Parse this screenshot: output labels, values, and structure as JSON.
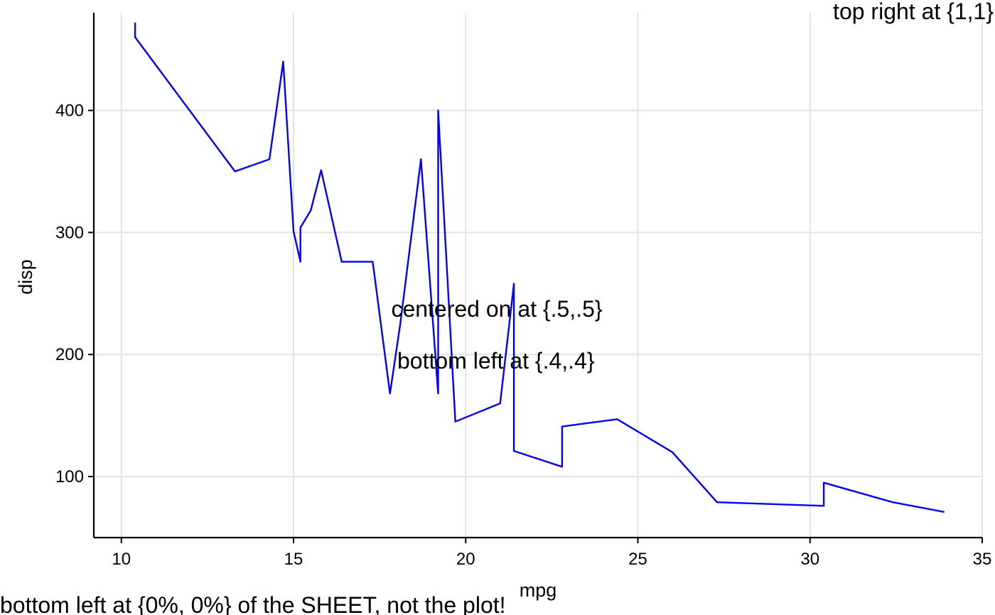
{
  "chart_data": {
    "type": "line",
    "xlabel": "mpg",
    "ylabel": "disp",
    "xlim": [
      9.2,
      35.0
    ],
    "ylim": [
      50,
      480
    ],
    "xticks": [
      10,
      15,
      20,
      25,
      30,
      35
    ],
    "yticks": [
      100,
      200,
      300,
      400
    ],
    "grid": true,
    "line_color": "#0000ff",
    "series": [
      {
        "x": [
          10.4,
          10.4,
          13.3,
          14.3,
          14.7,
          15.0,
          15.2,
          15.2,
          15.5,
          15.8,
          16.4,
          17.3,
          17.8,
          18.1,
          18.7,
          19.2,
          19.2,
          19.7,
          21.0,
          21.4,
          21.4,
          22.8,
          22.8,
          24.4,
          26.0,
          27.3,
          30.4,
          30.4,
          32.4,
          33.9
        ],
        "y": [
          472,
          460,
          350,
          360,
          440,
          301,
          276,
          304,
          318,
          351,
          276,
          276,
          168,
          225,
          360,
          168,
          400,
          145,
          160,
          258,
          121,
          108,
          141,
          147,
          120,
          79,
          76,
          95,
          79,
          71
        ]
      }
    ],
    "annotations": [
      {
        "text": "top right at {1,1}"
      },
      {
        "text": "centered on at {.5,.5}"
      },
      {
        "text": "bottom left at {.4,.4}"
      },
      {
        "text": "bottom left at {0%, 0%} of the SHEET, not the plot!"
      }
    ]
  }
}
